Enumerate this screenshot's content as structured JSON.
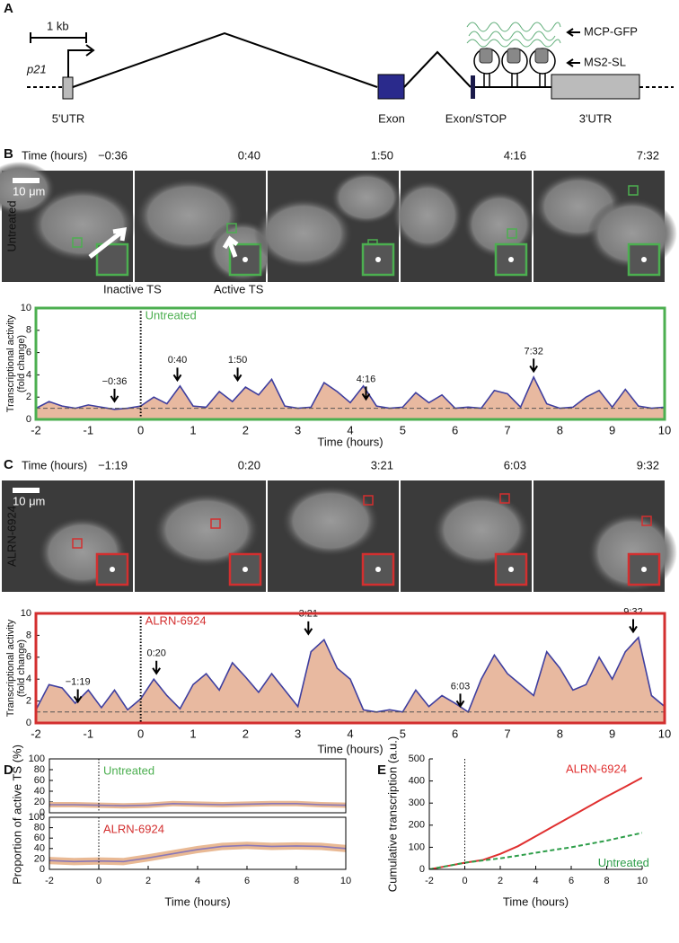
{
  "panels": {
    "a": "A",
    "b": "B",
    "c": "C",
    "d": "D",
    "e": "E"
  },
  "diagram": {
    "scale": "1 kb",
    "gene": "p21",
    "utr5": "5'UTR",
    "exon": "Exon",
    "exon_stop": "Exon/STOP",
    "utr3": "3'UTR",
    "mcp": "MCP-GFP",
    "ms2": "MS2-SL"
  },
  "images_b": {
    "time_label": "Time (hours)",
    "row_label": "Untreated",
    "scalebar": "10 μm",
    "times": [
      "−0:36",
      "0:40",
      "1:50",
      "4:16",
      "7:32"
    ],
    "inactive": "Inactive TS",
    "active": "Active TS"
  },
  "images_c": {
    "time_label": "Time (hours)",
    "row_label": "ALRN-6924",
    "scalebar": "10 μm",
    "times": [
      "−1:19",
      "0:20",
      "3:21",
      "6:03",
      "9:32"
    ]
  },
  "chart_data": [
    {
      "type": "trace",
      "label": "Untreated",
      "color": "#4caf50",
      "xlabel": "Time (hours)",
      "ylabel": [
        "Transcriptional activity",
        "(fold change)"
      ],
      "x": [
        -2,
        -1.75,
        -1.5,
        -1.25,
        -1,
        -0.75,
        -0.5,
        -0.25,
        0,
        0.25,
        0.5,
        0.75,
        1,
        1.25,
        1.5,
        1.75,
        2,
        2.25,
        2.5,
        2.75,
        3,
        3.25,
        3.5,
        3.75,
        4,
        4.25,
        4.5,
        4.75,
        5,
        5.25,
        5.5,
        5.75,
        6,
        6.25,
        6.5,
        6.75,
        7,
        7.25,
        7.5,
        7.75,
        8,
        8.25,
        8.5,
        8.75,
        9,
        9.25,
        9.5,
        9.75,
        10
      ],
      "series": [
        {
          "color": "#3f3f9f",
          "fill": "#e8b9a0",
          "values": [
            1.0,
            1.6,
            1.2,
            1.0,
            1.3,
            1.1,
            0.9,
            1.0,
            1.2,
            2.0,
            1.4,
            3.0,
            1.2,
            1.1,
            2.5,
            1.6,
            2.9,
            2.2,
            3.6,
            1.2,
            1.0,
            1.1,
            3.3,
            2.5,
            1.5,
            3.0,
            1.2,
            1.0,
            1.1,
            2.4,
            1.5,
            2.2,
            1.0,
            1.1,
            1.0,
            2.6,
            2.3,
            1.1,
            3.8,
            1.4,
            1.0,
            1.1,
            2.0,
            2.6,
            1.1,
            2.7,
            1.2,
            1.0,
            1.1
          ]
        }
      ],
      "baseline": 1,
      "event_x": 0,
      "annotations": [
        {
          "label": "−0:36",
          "x": -0.5,
          "y": 1.3
        },
        {
          "label": "0:40",
          "x": 0.7,
          "y": 3.2
        },
        {
          "label": "1:50",
          "x": 1.85,
          "y": 3.2
        },
        {
          "label": "4:16",
          "x": 4.3,
          "y": 1.5
        },
        {
          "label": "7:32",
          "x": 7.5,
          "y": 4.0
        }
      ],
      "xlim": [
        -2,
        10
      ],
      "ylim": [
        0,
        10
      ],
      "xticks": [
        -2,
        -1,
        0,
        1,
        2,
        3,
        4,
        5,
        6,
        7,
        8,
        9,
        10
      ],
      "yticks": [
        0,
        2,
        4,
        6,
        8,
        10
      ]
    },
    {
      "type": "trace",
      "label": "ALRN-6924",
      "color": "#d32f2f",
      "xlabel": "Time (hours)",
      "ylabel": [
        "Transcriptional activity",
        "(fold change)"
      ],
      "x": [
        -2,
        -1.75,
        -1.5,
        -1.25,
        -1,
        -0.75,
        -0.5,
        -0.25,
        0,
        0.25,
        0.5,
        0.75,
        1,
        1.25,
        1.5,
        1.75,
        2,
        2.25,
        2.5,
        2.75,
        3,
        3.25,
        3.5,
        3.75,
        4,
        4.25,
        4.5,
        4.75,
        5,
        5.25,
        5.5,
        5.75,
        6,
        6.25,
        6.5,
        6.75,
        7,
        7.25,
        7.5,
        7.75,
        8,
        8.25,
        8.5,
        8.75,
        9,
        9.25,
        9.5,
        9.75,
        10
      ],
      "series": [
        {
          "color": "#3f3f9f",
          "fill": "#e8b9a0",
          "values": [
            1.2,
            3.5,
            3.2,
            1.8,
            3.0,
            1.4,
            3.0,
            1.2,
            2.2,
            4.0,
            2.5,
            1.3,
            3.5,
            4.5,
            3.0,
            5.5,
            4.2,
            2.8,
            4.5,
            3.0,
            1.5,
            6.5,
            7.6,
            5.0,
            4.0,
            1.2,
            1.0,
            1.2,
            1.0,
            3.0,
            1.5,
            2.5,
            1.8,
            1.0,
            4.0,
            6.2,
            4.5,
            3.5,
            2.5,
            6.5,
            5.0,
            3.0,
            3.5,
            6.0,
            4.0,
            6.5,
            7.8,
            2.5,
            1.5
          ]
        }
      ],
      "baseline": 1,
      "event_x": 0,
      "annotations": [
        {
          "label": "−1:19",
          "x": -1.2,
          "y": 1.6
        },
        {
          "label": "0:20",
          "x": 0.3,
          "y": 4.2
        },
        {
          "label": "3:21",
          "x": 3.2,
          "y": 7.8
        },
        {
          "label": "6:03",
          "x": 6.1,
          "y": 1.2
        },
        {
          "label": "9:32",
          "x": 9.4,
          "y": 8.0
        }
      ],
      "xlim": [
        -2,
        10
      ],
      "ylim": [
        0,
        10
      ],
      "xticks": [
        -2,
        -1,
        0,
        1,
        2,
        3,
        4,
        5,
        6,
        7,
        8,
        9,
        10
      ],
      "yticks": [
        0,
        2,
        4,
        6,
        8,
        10
      ]
    },
    {
      "type": "band",
      "label": "Untreated",
      "color": "#4caf50",
      "ylabel": "Proportion of active TS  (%)",
      "box": true,
      "event_x": 0,
      "x": [
        -2,
        -1,
        0,
        1,
        2,
        3,
        4,
        5,
        6,
        7,
        8,
        9,
        10
      ],
      "series": [
        {
          "color": "#8a78b8",
          "fill": "#e9b994",
          "values": [
            15,
            15,
            14,
            13,
            14,
            17,
            16,
            15,
            16,
            17,
            17,
            15,
            14
          ],
          "lower": [
            10,
            10,
            9,
            8,
            9,
            12,
            11,
            10,
            11,
            12,
            12,
            10,
            9
          ],
          "upper": [
            20,
            20,
            19,
            18,
            19,
            22,
            21,
            20,
            21,
            22,
            22,
            20,
            19
          ]
        }
      ],
      "xlim": [
        -2,
        10
      ],
      "ylim": [
        0,
        100
      ],
      "yticks": [
        0,
        20,
        40,
        60,
        80,
        100
      ]
    },
    {
      "type": "band",
      "label": "ALRN-6924",
      "color": "#d32f2f",
      "xlabel": "Time (hours)",
      "box": true,
      "event_x": 0,
      "x": [
        -2,
        -1,
        0,
        1,
        2,
        3,
        4,
        5,
        6,
        7,
        8,
        9,
        10
      ],
      "series": [
        {
          "color": "#8a78b8",
          "fill": "#e9b994",
          "values": [
            17,
            15,
            16,
            15,
            22,
            30,
            38,
            44,
            46,
            44,
            45,
            44,
            40
          ],
          "lower": [
            10,
            8,
            9,
            8,
            15,
            23,
            31,
            37,
            39,
            37,
            38,
            37,
            33
          ],
          "upper": [
            24,
            22,
            23,
            22,
            29,
            37,
            45,
            51,
            53,
            51,
            52,
            51,
            47
          ]
        }
      ],
      "xlim": [
        -2,
        10
      ],
      "ylim": [
        0,
        100
      ],
      "xticks": [
        -2,
        0,
        2,
        4,
        6,
        8,
        10
      ],
      "yticks": [
        0,
        20,
        40,
        60,
        80,
        100
      ]
    },
    {
      "type": "line",
      "xlabel": "Time (hours)",
      "ylabel": "Cumulative transcription (a.u.)",
      "event_x": 0,
      "x": [
        -2,
        -1,
        0,
        1,
        2,
        3,
        4,
        5,
        6,
        7,
        8,
        9,
        10
      ],
      "series": [
        {
          "name": "ALRN-6924",
          "color": "#e03030",
          "values": [
            0,
            15,
            30,
            42,
            70,
            105,
            150,
            195,
            240,
            285,
            330,
            372,
            415
          ]
        },
        {
          "name": "Untreated",
          "color": "#2e9e4a",
          "dash": true,
          "values": [
            0,
            15,
            30,
            40,
            50,
            62,
            75,
            88,
            100,
            115,
            130,
            148,
            165
          ]
        }
      ],
      "xlim": [
        -2,
        10
      ],
      "ylim": [
        0,
        500
      ],
      "xticks": [
        -2,
        0,
        2,
        4,
        6,
        8,
        10
      ],
      "yticks": [
        0,
        100,
        200,
        300,
        400,
        500
      ]
    }
  ]
}
